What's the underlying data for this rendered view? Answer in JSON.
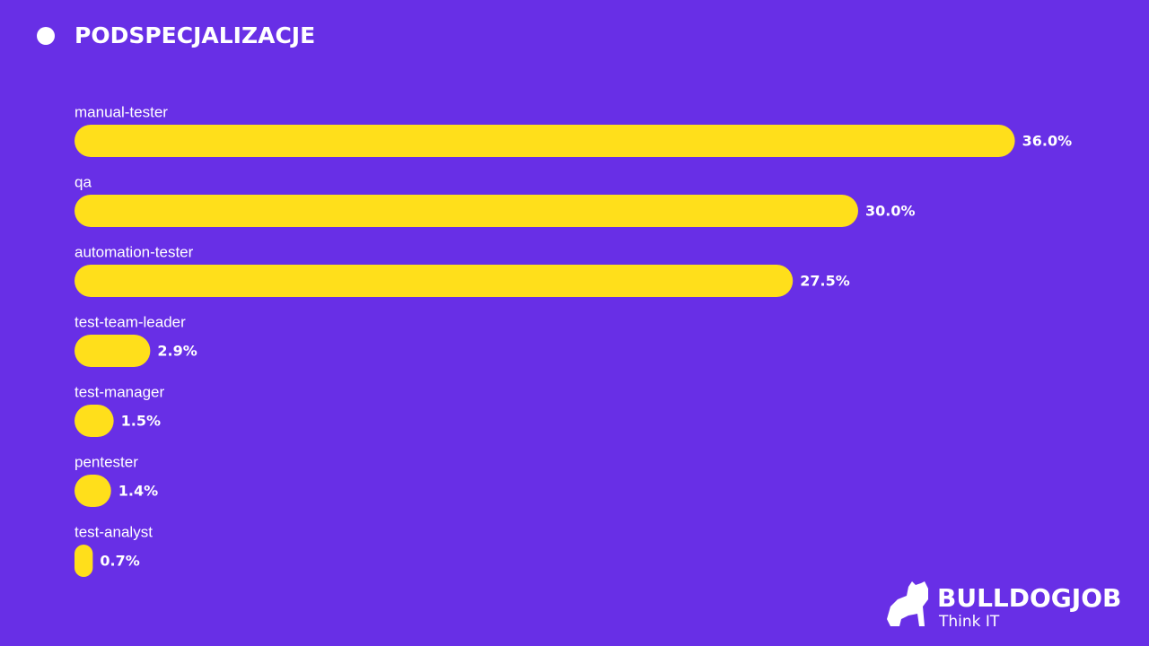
{
  "chart_data": {
    "type": "bar",
    "orientation": "horizontal",
    "title": "PODSPECJALIZACJE",
    "categories": [
      "manual-tester",
      "qa",
      "automation-tester",
      "test-team-leader",
      "test-manager",
      "pentester",
      "test-analyst"
    ],
    "values": [
      36.0,
      30.0,
      27.5,
      2.9,
      1.5,
      1.4,
      0.7
    ],
    "value_labels": [
      "36.0%",
      "30.0%",
      "27.5%",
      "2.9%",
      "1.5%",
      "1.4%",
      "0.7%"
    ],
    "color": "#ffdf1b"
  },
  "logo": {
    "name": "BULLDOGJOB",
    "tagline": "Think IT"
  }
}
